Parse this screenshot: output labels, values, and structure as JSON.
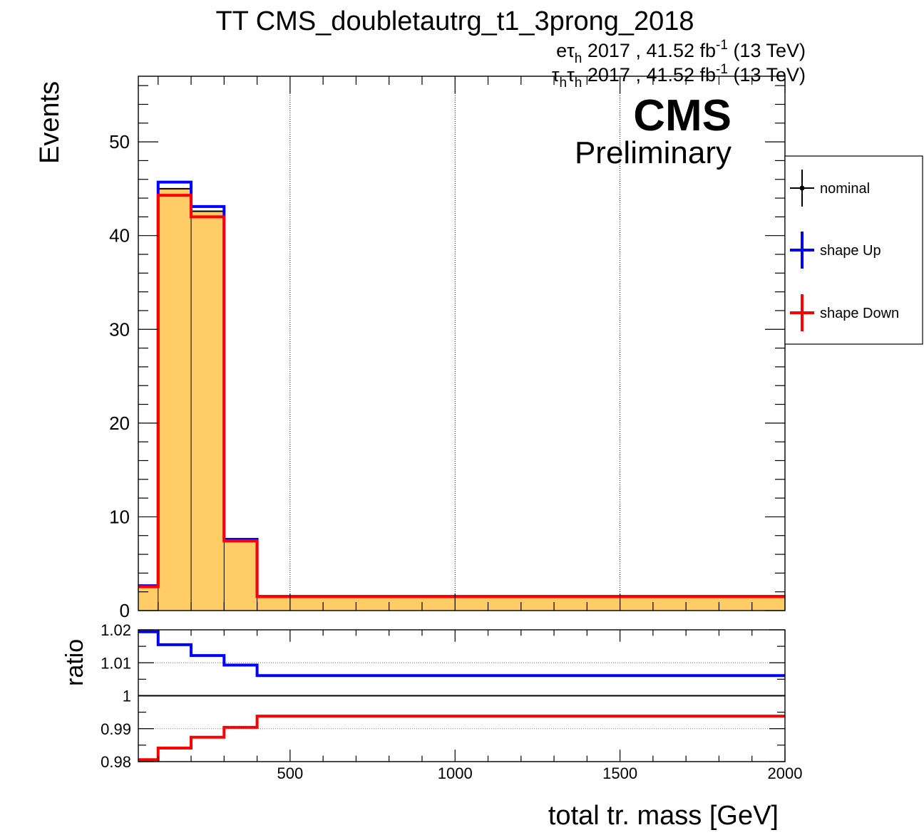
{
  "chart_data": {
    "type": "line",
    "title": "TT CMS_doubletautrg_t1_3prong_2018",
    "lumi_lines": [
      {
        "channel_main": "eτ",
        "channel_sub": "h",
        "text": " 2017 , 41.52 fb",
        "exp": "-1",
        "energy": " (13 TeV)"
      },
      {
        "channel_main": "τ",
        "channel_sub": "h",
        "channel_main2": "τ",
        "channel_sub2": "h",
        "text": " 2017 , 41.52 fb",
        "exp": "-1",
        "energy": " (13 TeV)"
      }
    ],
    "cms_label": "CMS",
    "cms_sublabel": "Preliminary",
    "xlabel": "total tr. mass [GeV]",
    "ylabel": "Events",
    "ratio_ylabel": "ratio",
    "xlim": [
      40,
      2000
    ],
    "ylim": [
      0,
      57
    ],
    "ratio_ylim": [
      0.98,
      1.02
    ],
    "x_ticks": [
      "500",
      "1000",
      "1500",
      "2000"
    ],
    "y_ticks": [
      "0",
      "10",
      "20",
      "30",
      "40",
      "50"
    ],
    "ratio_ticks": [
      "0.98",
      "0.99",
      "1",
      "1.01",
      "1.02"
    ],
    "bin_edges": [
      40,
      100,
      200,
      300,
      400,
      2000
    ],
    "series": [
      {
        "name": "nominal",
        "color": "#000000",
        "fill": "#ffcc66",
        "values": [
          2.6,
          45.0,
          42.6,
          7.5,
          1.5
        ]
      },
      {
        "name": "shape Up",
        "color": "#0000ff",
        "values": [
          2.65,
          45.7,
          43.1,
          7.6,
          1.51
        ]
      },
      {
        "name": "shape Down",
        "color": "#ff0000",
        "values": [
          2.55,
          44.3,
          42.0,
          7.43,
          1.49
        ]
      }
    ],
    "ratio_series": [
      {
        "name": "shape Up",
        "color": "#0000ff",
        "values": [
          1.0194,
          1.0155,
          1.0122,
          1.0093,
          1.0061
        ]
      },
      {
        "name": "shape Down",
        "color": "#ff0000",
        "values": [
          0.9806,
          0.9841,
          0.9874,
          0.9904,
          0.9938
        ]
      }
    ],
    "grid": "vertical dotted on main pad, horizontal dotted on ratio pad",
    "legend_position": "right"
  }
}
